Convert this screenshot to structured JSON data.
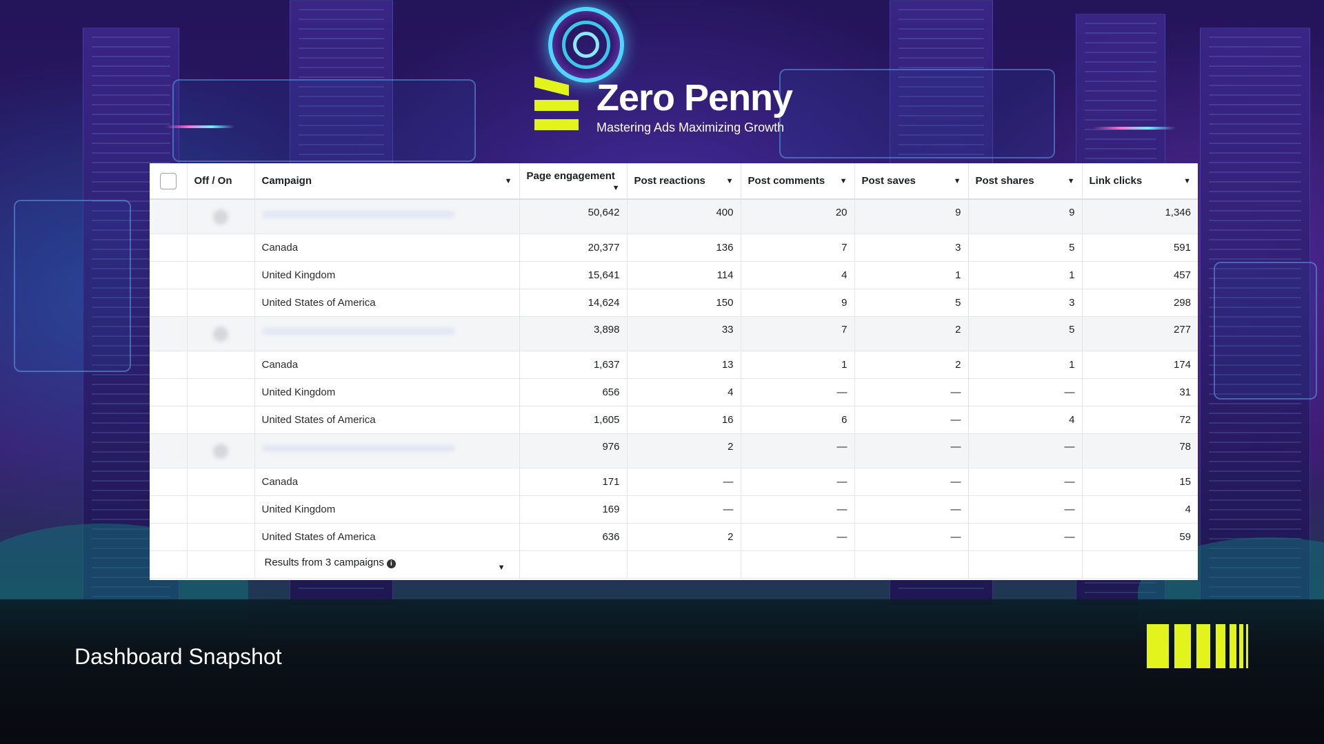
{
  "brand": {
    "name": "Zero Penny",
    "tagline": "Mastering Ads Maximizing Growth",
    "accent_color": "#e3f31c"
  },
  "table": {
    "columns": {
      "toggle": "Off / On",
      "campaign": "Campaign",
      "page_engagement": "Page engagement",
      "post_reactions": "Post reactions",
      "post_comments": "Post comments",
      "post_saves": "Post saves",
      "post_shares": "Post shares",
      "link_clicks": "Link clicks"
    },
    "rows": [
      {
        "name": "",
        "pe": "50,642",
        "pr": "400",
        "pc": "20",
        "ps": "9",
        "psh": "9",
        "lc": "1,346"
      },
      {
        "name": "Canada",
        "pe": "20,377",
        "pr": "136",
        "pc": "7",
        "ps": "3",
        "psh": "5",
        "lc": "591"
      },
      {
        "name": "United Kingdom",
        "pe": "15,641",
        "pr": "114",
        "pc": "4",
        "ps": "1",
        "psh": "1",
        "lc": "457"
      },
      {
        "name": "United States of America",
        "pe": "14,624",
        "pr": "150",
        "pc": "9",
        "ps": "5",
        "psh": "3",
        "lc": "298"
      },
      {
        "name": "",
        "pe": "3,898",
        "pr": "33",
        "pc": "7",
        "ps": "2",
        "psh": "5",
        "lc": "277"
      },
      {
        "name": "Canada",
        "pe": "1,637",
        "pr": "13",
        "pc": "1",
        "ps": "2",
        "psh": "1",
        "lc": "174"
      },
      {
        "name": "United Kingdom",
        "pe": "656",
        "pr": "4",
        "pc": "—",
        "ps": "—",
        "psh": "—",
        "lc": "31"
      },
      {
        "name": "United States of America",
        "pe": "1,605",
        "pr": "16",
        "pc": "6",
        "ps": "—",
        "psh": "4",
        "lc": "72"
      },
      {
        "name": "",
        "pe": "976",
        "pr": "2",
        "pc": "—",
        "ps": "—",
        "psh": "—",
        "lc": "78"
      },
      {
        "name": "Canada",
        "pe": "171",
        "pr": "—",
        "pc": "—",
        "ps": "—",
        "psh": "—",
        "lc": "15"
      },
      {
        "name": "United Kingdom",
        "pe": "169",
        "pr": "—",
        "pc": "—",
        "ps": "—",
        "psh": "—",
        "lc": "4"
      },
      {
        "name": "United States of America",
        "pe": "636",
        "pr": "2",
        "pc": "—",
        "ps": "—",
        "psh": "—",
        "lc": "59"
      }
    ],
    "footer": {
      "results_label": "Results from 3 campaigns",
      "info_icon_glyph": "i"
    }
  },
  "caption": "Dashboard Snapshot"
}
